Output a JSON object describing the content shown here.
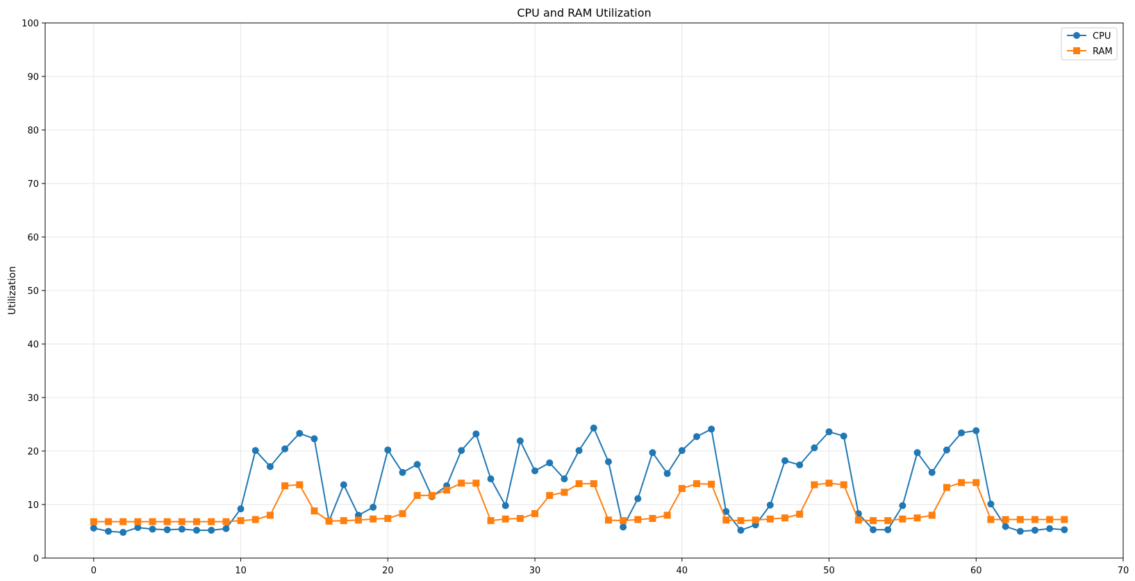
{
  "chart_data": {
    "type": "line",
    "title": "CPU and RAM Utilization",
    "xlabel": "",
    "ylabel": "Utilization",
    "xlim": [
      -3.3,
      70
    ],
    "ylim": [
      0,
      100
    ],
    "xticks": [
      0,
      10,
      20,
      30,
      40,
      50,
      60,
      70
    ],
    "yticks": [
      0,
      10,
      20,
      30,
      40,
      50,
      60,
      70,
      80,
      90,
      100
    ],
    "grid": true,
    "legend_position": "top-right",
    "x": [
      0,
      1,
      2,
      3,
      4,
      5,
      6,
      7,
      8,
      9,
      10,
      11,
      12,
      13,
      14,
      15,
      16,
      17,
      18,
      19,
      20,
      21,
      22,
      23,
      24,
      25,
      26,
      27,
      28,
      29,
      30,
      31,
      32,
      33,
      34,
      35,
      36,
      37,
      38,
      39,
      40,
      41,
      42,
      43,
      44,
      45,
      46,
      47,
      48,
      49,
      50,
      51,
      52,
      53,
      54,
      55,
      56,
      57,
      58,
      59,
      60,
      61,
      62,
      63,
      64,
      65,
      66
    ],
    "series": [
      {
        "name": "CPU",
        "color": "#1f77b4",
        "marker": "circle",
        "values": [
          5.6,
          5.0,
          4.8,
          5.7,
          5.4,
          5.3,
          5.4,
          5.2,
          5.2,
          5.5,
          9.2,
          20.1,
          17.1,
          20.4,
          23.3,
          22.3,
          6.9,
          13.7,
          8.0,
          9.5,
          20.2,
          16.0,
          17.5,
          11.5,
          13.5,
          20.1,
          23.2,
          14.8,
          9.8,
          21.9,
          16.3,
          17.8,
          14.8,
          20.1,
          24.3,
          18.0,
          5.8,
          11.1,
          19.7,
          15.8,
          20.1,
          22.7,
          24.1,
          8.7,
          5.2,
          6.2,
          9.9,
          18.2,
          17.4,
          20.6,
          23.6,
          22.8,
          8.3,
          5.3,
          5.3,
          9.8,
          19.7,
          16.0,
          20.2,
          23.4,
          23.8,
          10.1,
          5.9,
          5.0,
          5.2,
          5.5,
          5.3
        ]
      },
      {
        "name": "RAM",
        "color": "#ff7f0e",
        "marker": "square",
        "values": [
          6.8,
          6.8,
          6.8,
          6.8,
          6.8,
          6.8,
          6.8,
          6.8,
          6.8,
          6.8,
          7.0,
          7.2,
          8.0,
          13.5,
          13.7,
          8.8,
          6.9,
          7.0,
          7.1,
          7.3,
          7.4,
          8.3,
          11.7,
          11.7,
          12.7,
          14.0,
          14.0,
          7.0,
          7.3,
          7.4,
          8.3,
          11.7,
          12.3,
          13.9,
          13.9,
          7.1,
          7.0,
          7.2,
          7.4,
          8.0,
          13.0,
          13.9,
          13.8,
          7.1,
          7.0,
          7.1,
          7.3,
          7.5,
          8.2,
          13.7,
          14.0,
          13.7,
          7.1,
          7.0,
          7.0,
          7.3,
          7.5,
          8.0,
          13.2,
          14.1,
          14.1,
          7.2,
          7.2,
          7.2,
          7.2,
          7.2,
          7.2
        ]
      }
    ]
  }
}
